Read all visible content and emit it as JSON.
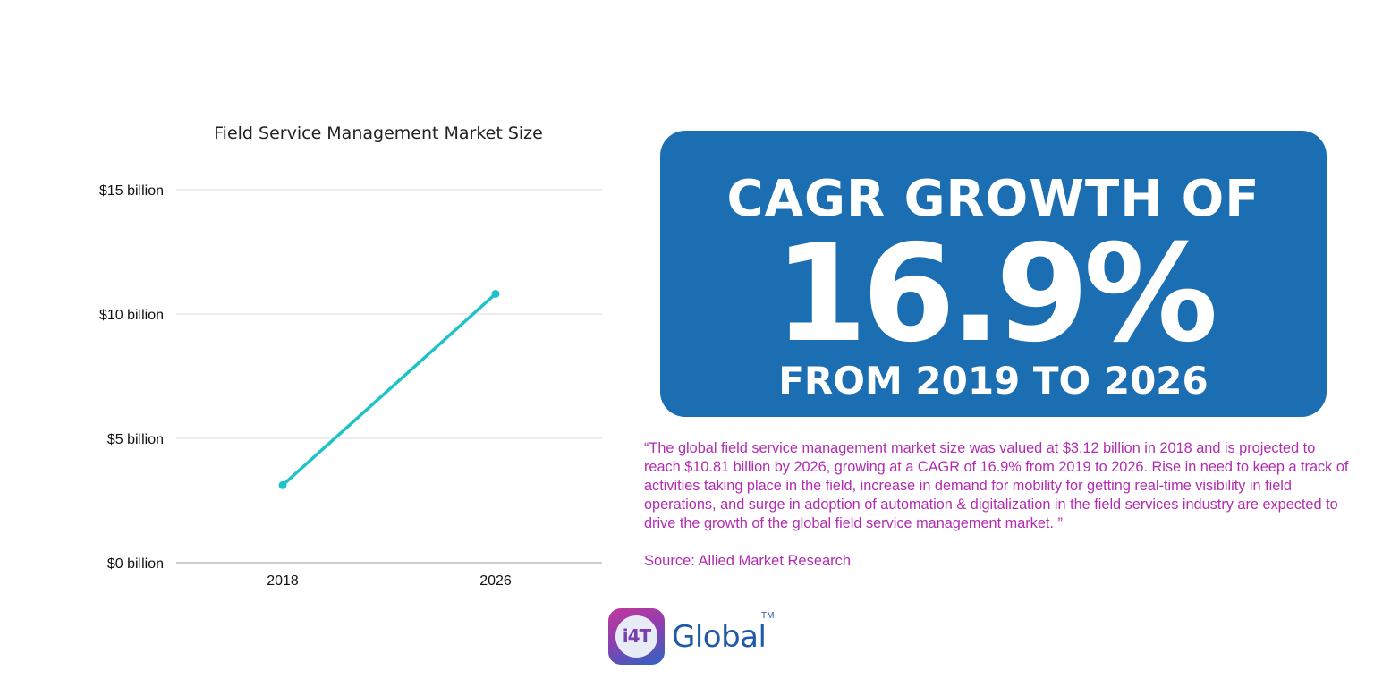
{
  "chart_data": {
    "type": "line",
    "title": "Field Service Management Market Size",
    "categories": [
      "2018",
      "2026"
    ],
    "series": [
      {
        "values": [
          3.12,
          10.81
        ],
        "color": "#1ec3c8"
      }
    ],
    "y_ticks": [
      0,
      5,
      10,
      15
    ],
    "y_tick_labels": [
      "$0 billion",
      "$5 billion",
      "$10 billion",
      "$15 billion"
    ],
    "ylim": [
      0,
      15
    ],
    "grid": true,
    "gridline_color": "#d9d9d9",
    "xlabel": "",
    "ylabel": ""
  },
  "cagr": {
    "line1": "CAGR GROWTH OF",
    "value": "16.9%",
    "line3": "FROM 2019 TO 2026",
    "box_color": "#1b6eb2"
  },
  "quote": {
    "text": " “The global field service management market size was valued at $3.12 billion in 2018 and is projected to reach $10.81 billion by 2026, growing at a CAGR of 16.9% from 2019 to 2026. Rise in need to keep a track of activities taking place in the field,  increase in demand for mobility for getting real-time visibility in field operations, and surge in adoption of automation & digitalization in the field services industry are expected to drive the growth of the global field service management market. ”",
    "color": "#b22cb0"
  },
  "source": {
    "text": "Source: Allied Market Research"
  },
  "logo": {
    "badge_text": "i4T",
    "word": "Global",
    "tm": "TM"
  }
}
